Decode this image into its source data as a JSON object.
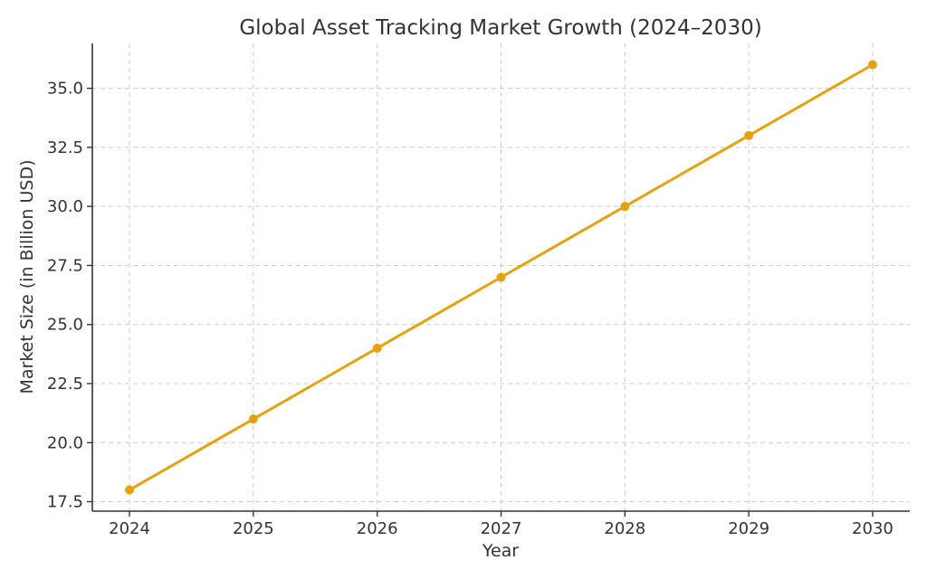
{
  "chart_data": {
    "type": "line",
    "title": "Global Asset Tracking Market Growth (2024–2030)",
    "xlabel": "Year",
    "ylabel": "Market Size (in Billion USD)",
    "x": [
      2024,
      2025,
      2026,
      2027,
      2028,
      2029,
      2030
    ],
    "x_tick_labels": [
      "2024",
      "2025",
      "2026",
      "2027",
      "2028",
      "2029",
      "2030"
    ],
    "y_ticks": [
      17.5,
      20.0,
      22.5,
      25.0,
      27.5,
      30.0,
      32.5,
      35.0
    ],
    "y_tick_labels": [
      "17.5",
      "20.0",
      "22.5",
      "25.0",
      "27.5",
      "30.0",
      "32.5",
      "35.0"
    ],
    "xlim": [
      2023.7,
      2030.3
    ],
    "ylim": [
      17.1,
      36.9
    ],
    "grid": true,
    "legend": "none",
    "series": [
      {
        "values": [
          18,
          21,
          24,
          27,
          30,
          33,
          36
        ],
        "color": "#E6A10E",
        "marker": "circle"
      }
    ]
  }
}
